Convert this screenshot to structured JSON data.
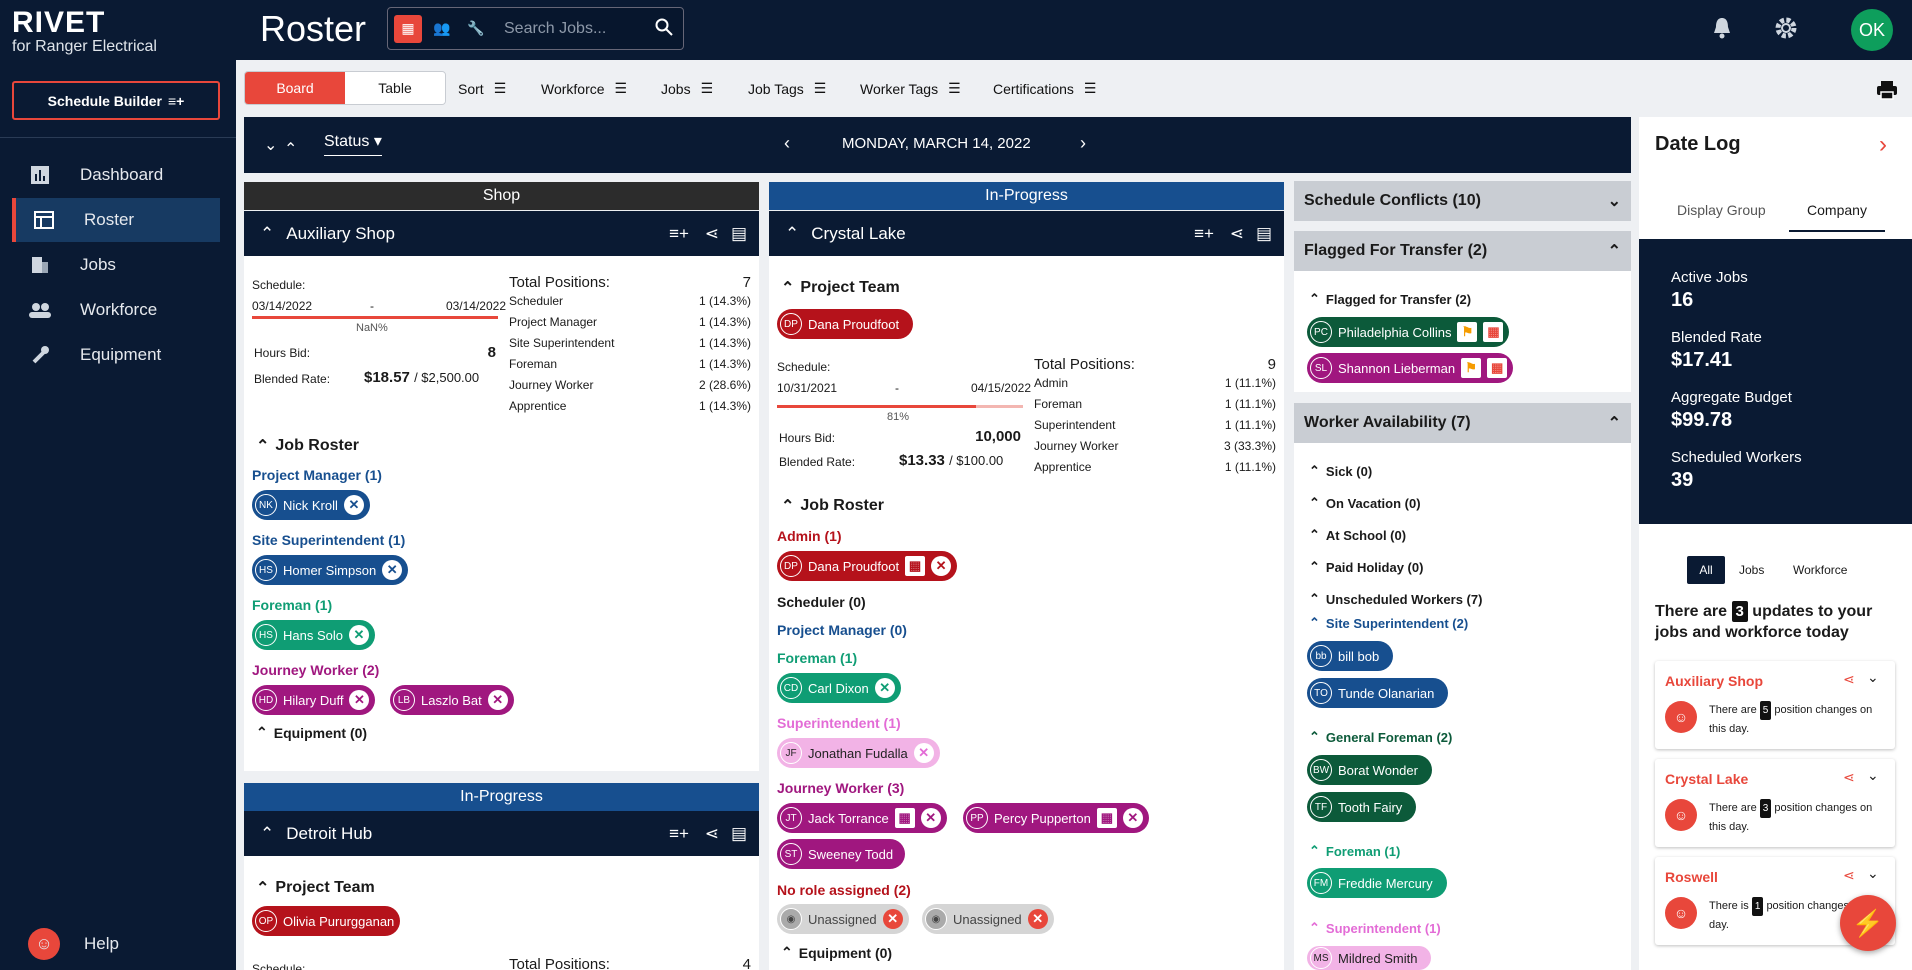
{
  "app": {
    "logo": "RIVET",
    "subtitle": "for Ranger Electrical",
    "page_title": "Roster",
    "search_placeholder": "Search Jobs...",
    "user_initials": "OK"
  },
  "sidebar": {
    "schedule_builder": "Schedule Builder",
    "items": [
      {
        "label": "Dashboard"
      },
      {
        "label": "Roster"
      },
      {
        "label": "Jobs"
      },
      {
        "label": "Workforce"
      },
      {
        "label": "Equipment"
      }
    ],
    "help": "Help"
  },
  "toolbar": {
    "board": "Board",
    "table": "Table",
    "filters": [
      "Sort",
      "Workforce",
      "Jobs",
      "Job Tags",
      "Worker Tags",
      "Certifications"
    ]
  },
  "board": {
    "status_label": "Status",
    "date": "MONDAY, MARCH 14, 2022"
  },
  "col1": {
    "header": "Shop",
    "job": "Auxiliary Shop",
    "schedule_label": "Schedule:",
    "start": "03/14/2022",
    "dash": "-",
    "end": "03/14/2022",
    "pct": "NaN%",
    "hours_label": "Hours Bid:",
    "hours": "8",
    "rate_label": "Blended Rate:",
    "rate": "$18.57",
    "budget": "/ $2,500.00",
    "total_label": "Total Positions:",
    "total": "7",
    "positions": [
      {
        "k": "Scheduler",
        "v": "1 (14.3%)"
      },
      {
        "k": "Project Manager",
        "v": "1 (14.3%)"
      },
      {
        "k": "Site Superintendent",
        "v": "1 (14.3%)"
      },
      {
        "k": "Foreman",
        "v": "1 (14.3%)"
      },
      {
        "k": "Journey Worker",
        "v": "2 (28.6%)"
      },
      {
        "k": "Apprentice",
        "v": "1 (14.3%)"
      }
    ],
    "roster_title": "Job Roster",
    "pm_role": "Project Manager (1)",
    "pm1": {
      "ini": "NK",
      "name": "Nick Kroll"
    },
    "ss_role": "Site Superintendent (1)",
    "ss1": {
      "ini": "HS",
      "name": "Homer Simpson"
    },
    "fm_role": "Foreman (1)",
    "fm1": {
      "ini": "HS",
      "name": "Hans Solo"
    },
    "jw_role": "Journey Worker (2)",
    "jw1": {
      "ini": "HD",
      "name": "Hilary Duff"
    },
    "jw2": {
      "ini": "LB",
      "name": "Laszlo Bat"
    },
    "equipment": "Equipment (0)",
    "header2": "In-Progress",
    "job2": "Detroit Hub",
    "team2": "Project Team",
    "team2_1": {
      "ini": "OP",
      "name": "Olivia Pururgganan"
    },
    "schedule2": "Schedule:",
    "total2_label": "Total Positions:",
    "total2": "4"
  },
  "col2": {
    "header": "In-Progress",
    "job": "Crystal Lake",
    "team": "Project Team",
    "team1": {
      "ini": "DP",
      "name": "Dana Proudfoot"
    },
    "schedule_label": "Schedule:",
    "start": "10/31/2021",
    "dash": "-",
    "end": "04/15/2022",
    "pct": "81%",
    "hours_label": "Hours Bid:",
    "hours": "10,000",
    "rate_label": "Blended Rate:",
    "rate": "$13.33",
    "budget": "/ $100.00",
    "total_label": "Total Positions:",
    "total": "9",
    "positions": [
      {
        "k": "Admin",
        "v": "1 (11.1%)"
      },
      {
        "k": "Foreman",
        "v": "1 (11.1%)"
      },
      {
        "k": "Superintendent",
        "v": "1 (11.1%)"
      },
      {
        "k": "Journey Worker",
        "v": "3 (33.3%)"
      },
      {
        "k": "Apprentice",
        "v": "1 (11.1%)"
      }
    ],
    "roster_title": "Job Roster",
    "admin_role": "Admin (1)",
    "ad1": {
      "ini": "DP",
      "name": "Dana Proudfoot"
    },
    "sched_role": "Scheduler (0)",
    "pm_role": "Project Manager (0)",
    "fm_role": "Foreman (1)",
    "fm1": {
      "ini": "CD",
      "name": "Carl Dixon"
    },
    "su_role": "Superintendent (1)",
    "su1": {
      "ini": "JF",
      "name": "Jonathan Fudalla"
    },
    "jw_role": "Journey Worker (3)",
    "jw1": {
      "ini": "JT",
      "name": "Jack Torrance"
    },
    "jw2": {
      "ini": "PP",
      "name": "Percy Pupperton"
    },
    "jw3": {
      "ini": "ST",
      "name": "Sweeney Todd"
    },
    "nr_role": "No role assigned (2)",
    "un1": "Unassigned",
    "un2": "Unassigned",
    "equipment": "Equipment (0)"
  },
  "col3": {
    "conflicts": "Schedule Conflicts (10)",
    "flagged": "Flagged For Transfer (2)",
    "flagged_sub": "Flagged for Transfer (2)",
    "fl1": {
      "ini": "PC",
      "name": "Philadelphia Collins"
    },
    "fl2": {
      "ini": "SL",
      "name": "Shannon Lieberman"
    },
    "availability": "Worker Availability (7)",
    "sick": "Sick (0)",
    "vacation": "On Vacation (0)",
    "school": "At School (0)",
    "holiday": "Paid Holiday (0)",
    "unscheduled": "Unscheduled Workers (7)",
    "ss_role": "Site Superintendent (2)",
    "ss1": {
      "ini": "bb",
      "name": "bill bob"
    },
    "ss2": {
      "ini": "TO",
      "name": "Tunde Olanarian"
    },
    "gf_role": "General Foreman (2)",
    "gf1": {
      "ini": "BW",
      "name": "Borat Wonder"
    },
    "gf2": {
      "ini": "TF",
      "name": "Tooth Fairy"
    },
    "fm_role": "Foreman (1)",
    "fm1": {
      "ini": "FM",
      "name": "Freddie Mercury"
    },
    "su_role": "Superintendent (1)",
    "su1": {
      "ini": "MS",
      "name": "Mildred Smith"
    }
  },
  "datelog": {
    "title": "Date Log",
    "tab1": "Display Group",
    "tab2": "Company",
    "stats": [
      {
        "label": "Active Jobs",
        "value": "16"
      },
      {
        "label": "Blended Rate",
        "value": "$17.41"
      },
      {
        "label": "Aggregate Budget",
        "value": "$99.78"
      },
      {
        "label": "Scheduled Workers",
        "value": "39"
      }
    ],
    "filter_all": "All",
    "filter_jobs": "Jobs",
    "filter_workforce": "Workforce",
    "updates_pre": "There are",
    "updates_count": "3",
    "updates_post": "updates to your jobs and workforce today",
    "updates": [
      {
        "job": "Auxiliary Shop",
        "pre": "There are",
        "n": "5",
        "post": "position changes on this day."
      },
      {
        "job": "Crystal Lake",
        "pre": "There are",
        "n": "3",
        "post": "position changes on this day."
      },
      {
        "job": "Roswell",
        "pre": "There is",
        "n": "1",
        "post": "position changes on this day."
      }
    ]
  }
}
